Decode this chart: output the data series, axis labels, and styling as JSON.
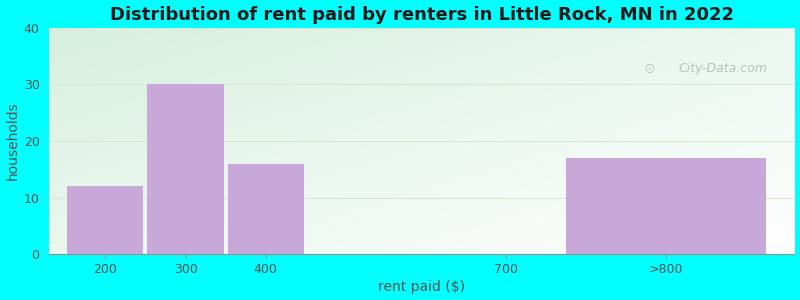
{
  "title": "Distribution of rent paid by renters in Little Rock, MN in 2022",
  "xlabel": "rent paid ($)",
  "ylabel": "households",
  "categories": [
    "200",
    "300",
    "400",
    "700",
    ">800"
  ],
  "x_positions": [
    200,
    300,
    400,
    700,
    900
  ],
  "bar_widths": [
    95,
    95,
    95,
    0,
    250
  ],
  "values": [
    12,
    30,
    16,
    0,
    17
  ],
  "bar_color": "#c8a8d8",
  "background_color": "#00ffff",
  "bg_color_topleft": "#d8eedd",
  "bg_color_bottomright": "#f0f8f4",
  "ylim": [
    0,
    40
  ],
  "yticks": [
    0,
    10,
    20,
    30,
    40
  ],
  "xlim": [
    130,
    1060
  ],
  "xtick_positions": [
    200,
    300,
    400,
    700,
    900
  ],
  "xtick_labels": [
    "200",
    "300",
    "400",
    "700",
    ">800"
  ],
  "grid_color": "#d8e8d0",
  "title_fontsize": 13,
  "axis_label_fontsize": 10,
  "tick_fontsize": 9,
  "watermark_text": "City-Data.com"
}
